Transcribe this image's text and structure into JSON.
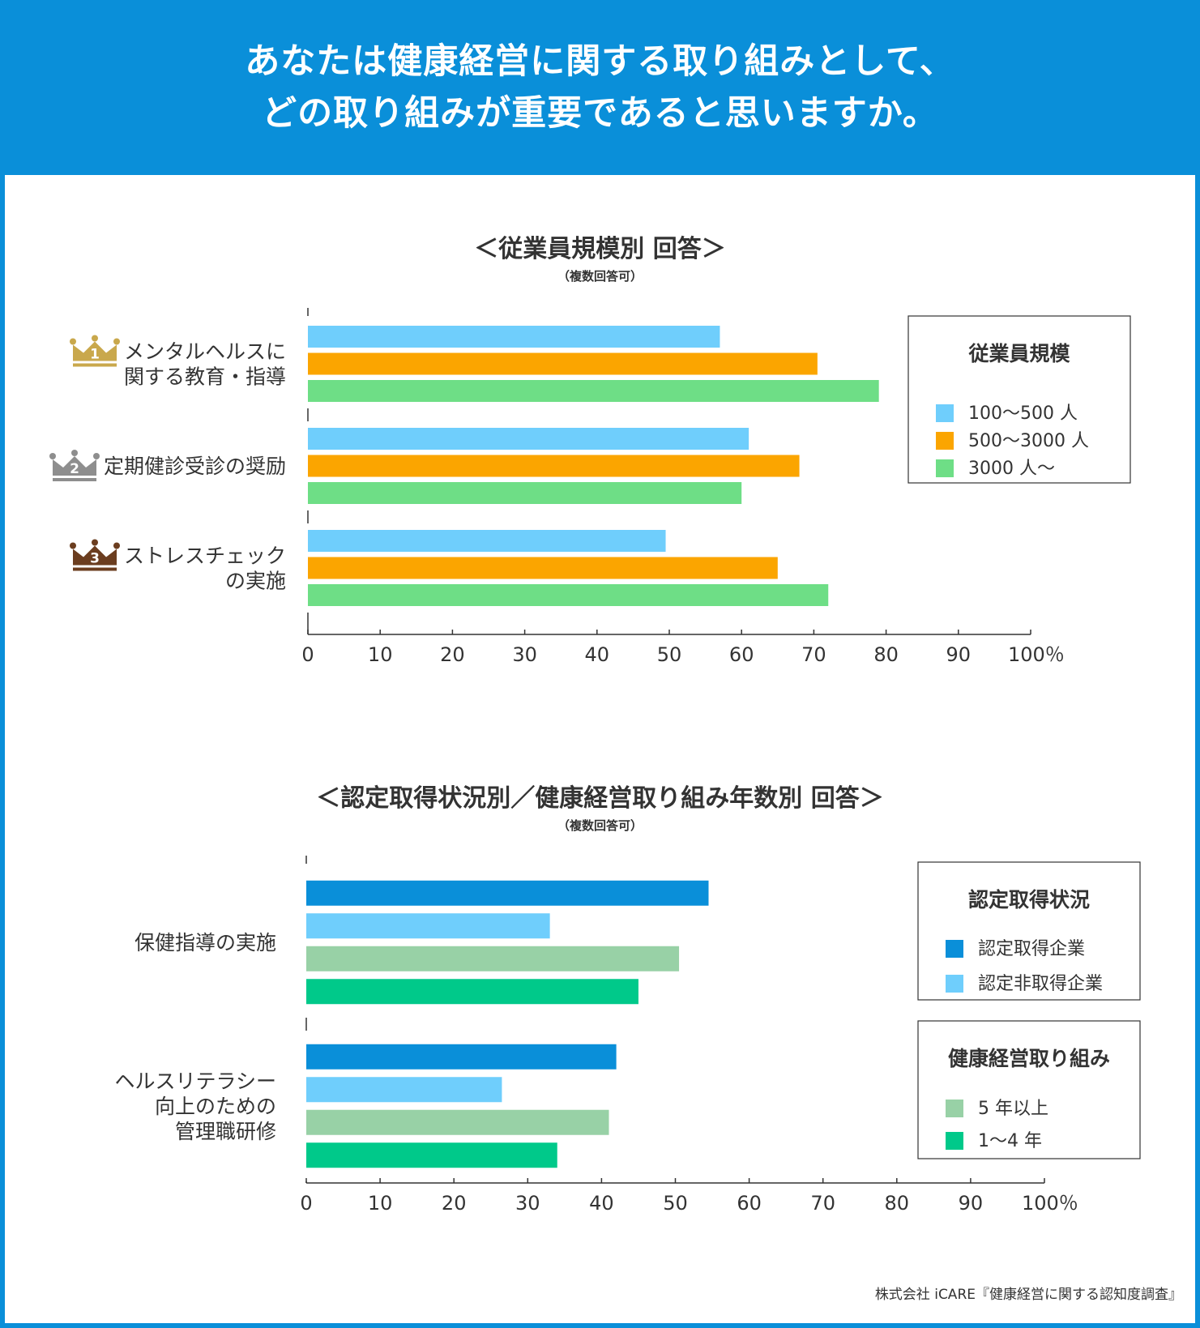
{
  "header": {
    "title_line1": "あなたは健康経営に関する取り組みとして、",
    "title_line2": "どの取り組みが重要であると思いますか。"
  },
  "chart_data": [
    {
      "type": "bar",
      "orientation": "horizontal",
      "title": "＜従業員規模別 回答＞",
      "subtitle": "（複数回答可）",
      "categories": [
        "メンタルヘルスに関する教育・指導",
        "定期健診受診の奨励",
        "ストレスチェックの実施"
      ],
      "category_lines": [
        [
          "メンタルヘルスに",
          "関する教育・指導"
        ],
        [
          "定期健診受診の奨励"
        ],
        [
          "ストレスチェック",
          "の実施"
        ]
      ],
      "rank_badges": [
        "1",
        "2",
        "3"
      ],
      "badge_colors": [
        "#c9a84c",
        "#8e8e8e",
        "#6b3d1f"
      ],
      "series": [
        {
          "name": "100〜500 人",
          "color": "#6fcefc",
          "values": [
            57,
            61,
            49.5
          ]
        },
        {
          "name": "500〜3000 人",
          "color": "#fba500",
          "values": [
            70.5,
            68,
            65
          ]
        },
        {
          "name": "3000 人〜",
          "color": "#6ede86",
          "values": [
            79,
            60,
            72
          ]
        }
      ],
      "xlim": [
        0,
        100
      ],
      "ticks": [
        "0",
        "10",
        "20",
        "30",
        "40",
        "50",
        "60",
        "70",
        "80",
        "90",
        "100％"
      ],
      "legend": {
        "title": "従業員規模",
        "placement": "right"
      }
    },
    {
      "type": "bar",
      "orientation": "horizontal",
      "title": "＜認定取得状況別／健康経営取り組み年数別 回答＞",
      "subtitle": "（複数回答可）",
      "categories": [
        "保健指導の実施",
        "ヘルスリテラシー向上のための管理職研修"
      ],
      "category_lines": [
        [
          "保健指導の実施"
        ],
        [
          "ヘルスリテラシー",
          "向上のための",
          "管理職研修"
        ]
      ],
      "series": [
        {
          "name": "認定取得企業",
          "color": "#0a8fd9",
          "values": [
            54.5,
            42
          ]
        },
        {
          "name": "認定非取得企業",
          "color": "#6fcefc",
          "values": [
            33,
            26.5
          ]
        },
        {
          "name": "5 年以上",
          "color": "#98d1a6",
          "values": [
            50.5,
            41
          ]
        },
        {
          "name": "1〜4 年",
          "color": "#00c98a",
          "values": [
            45,
            34
          ]
        }
      ],
      "xlim": [
        0,
        100
      ],
      "ticks": [
        "0",
        "10",
        "20",
        "30",
        "40",
        "50",
        "60",
        "70",
        "80",
        "90",
        "100％"
      ],
      "legends": [
        {
          "title": "認定取得状況",
          "series_index": [
            0,
            1
          ],
          "placement": "right"
        },
        {
          "title": "健康経営取り組み",
          "series_index": [
            2,
            3
          ],
          "placement": "right"
        }
      ]
    }
  ],
  "source": "株式会社 iCARE『健康経営に関する認知度調査』"
}
